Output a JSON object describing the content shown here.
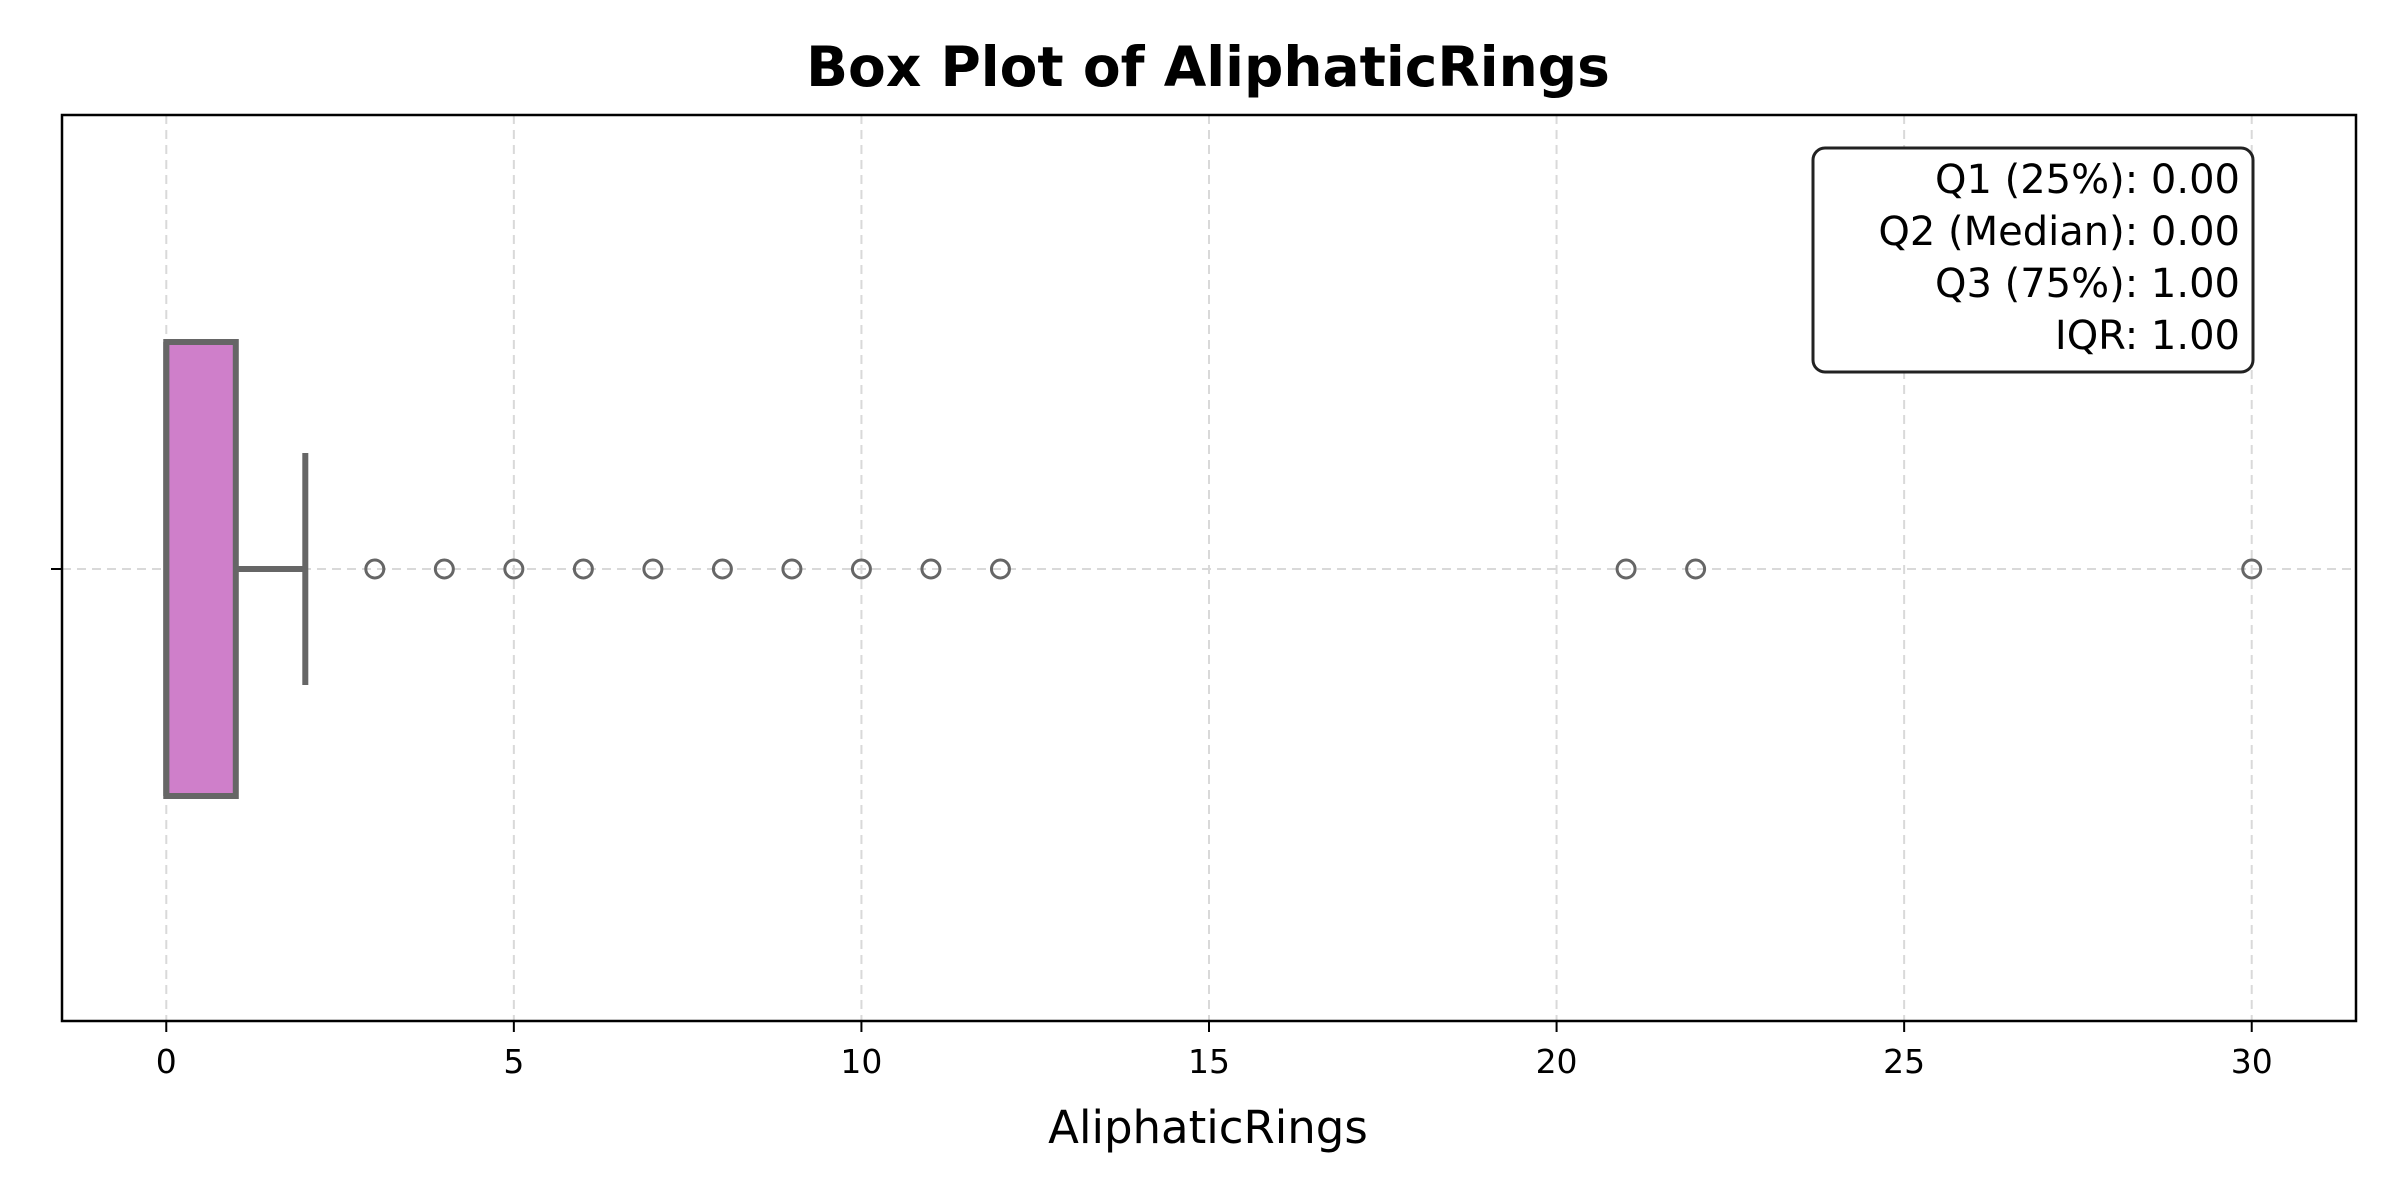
{
  "chart_data": {
    "type": "box",
    "title": "Box Plot of AliphaticRings",
    "xlabel": "AliphaticRings",
    "xlim": [
      -1.5,
      31.5
    ],
    "xticks": [
      0,
      5,
      10,
      15,
      20,
      25,
      30
    ],
    "xtick_labels": [
      "0",
      "5",
      "10",
      "15",
      "20",
      "25",
      "30"
    ],
    "grid": true,
    "orientation": "horizontal",
    "box": {
      "q1": 0,
      "median": 0,
      "q3": 1,
      "whisker_low": 0,
      "whisker_high": 2
    },
    "outliers": [
      3,
      4,
      5,
      6,
      7,
      8,
      9,
      10,
      11,
      12,
      21,
      22,
      30
    ],
    "annotation": {
      "position": "top-right",
      "lines": [
        "Q1 (25%): 0.00",
        "Q2 (Median): 0.00",
        "Q3 (75%): 1.00",
        "IQR: 1.00"
      ]
    },
    "colors": {
      "box_fill": "#cf7fca",
      "box_edge": "#666666",
      "grid": "#d9d9d9"
    }
  }
}
